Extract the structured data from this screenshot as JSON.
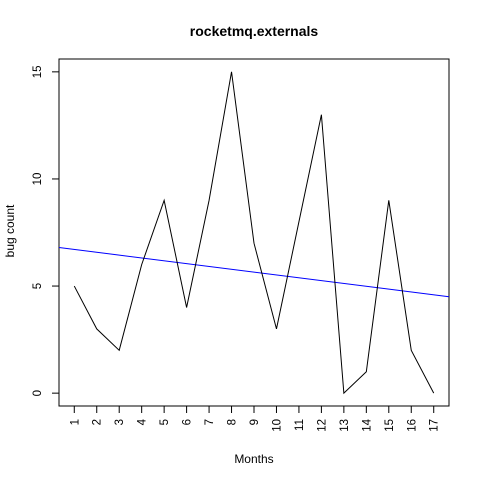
{
  "chart_data": {
    "type": "line",
    "title": "rocketmq.externals",
    "xlabel": "Months",
    "ylabel": "bug count",
    "x": [
      1,
      2,
      3,
      4,
      5,
      6,
      7,
      8,
      9,
      10,
      11,
      12,
      13,
      14,
      15,
      16,
      17
    ],
    "x_tick_labels": [
      "1",
      "2",
      "3",
      "4",
      "5",
      "6",
      "7",
      "8",
      "9",
      "10",
      "11",
      "12",
      "13",
      "14",
      "15",
      "16",
      "17"
    ],
    "y_ticks": [
      0,
      5,
      10,
      15
    ],
    "y_tick_labels": [
      "0",
      "5",
      "10",
      "15"
    ],
    "xlim": [
      0.32,
      17.68
    ],
    "ylim": [
      -0.6,
      15.6
    ],
    "grid": false,
    "series": [
      {
        "values": [
          5,
          3,
          2,
          6,
          9,
          4,
          9,
          15,
          7,
          3,
          8,
          13,
          0,
          1,
          9,
          2,
          0
        ],
        "color": "#000000"
      }
    ],
    "trend_line": {
      "color": "#0000ff",
      "x_range": [
        0.32,
        17.68
      ],
      "y_range": [
        6.8,
        4.5
      ]
    }
  }
}
